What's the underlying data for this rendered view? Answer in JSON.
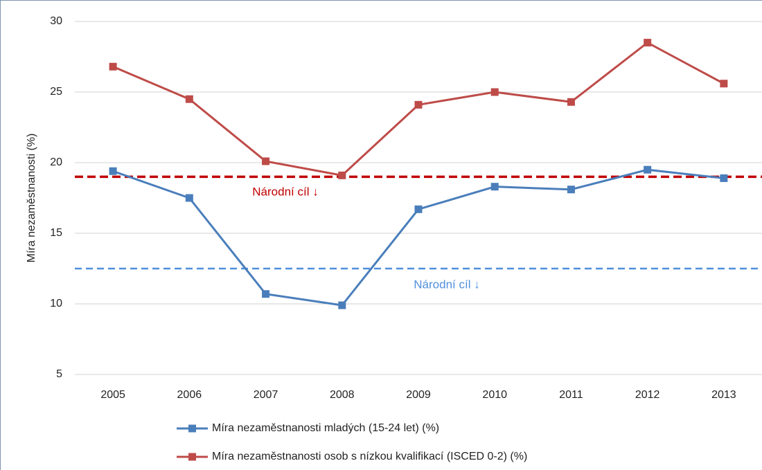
{
  "chart_data": {
    "type": "line",
    "y_label": "Míra nezaměstnanosti (%)",
    "categories": [
      "2005",
      "2006",
      "2007",
      "2008",
      "2009",
      "2010",
      "2011",
      "2012",
      "2013"
    ],
    "series": [
      {
        "name": "Míra nezaměstnanosti mladých (15-24 let) (%)",
        "color": "#4a7ebb",
        "values": [
          19.4,
          17.5,
          10.7,
          9.9,
          16.7,
          18.3,
          18.1,
          19.5,
          18.9
        ]
      },
      {
        "name": "Míra nezaměstnanosti osob s nízkou kvalifikací (ISCED 0-2) (%)",
        "color": "#be4b48",
        "values": [
          26.8,
          24.5,
          20.1,
          19.1,
          24.1,
          25.0,
          24.3,
          28.5,
          25.6
        ]
      }
    ],
    "reference_lines": [
      {
        "value": 19,
        "color": "#c00000",
        "label": "Národní cíl ↓"
      },
      {
        "value": 12.5,
        "color": "#4f8fdc",
        "label": "Národní cíl ↓"
      }
    ],
    "ylim": [
      5,
      30
    ],
    "yticks": [
      5,
      10,
      15,
      20,
      25,
      30
    ],
    "grid": true
  }
}
